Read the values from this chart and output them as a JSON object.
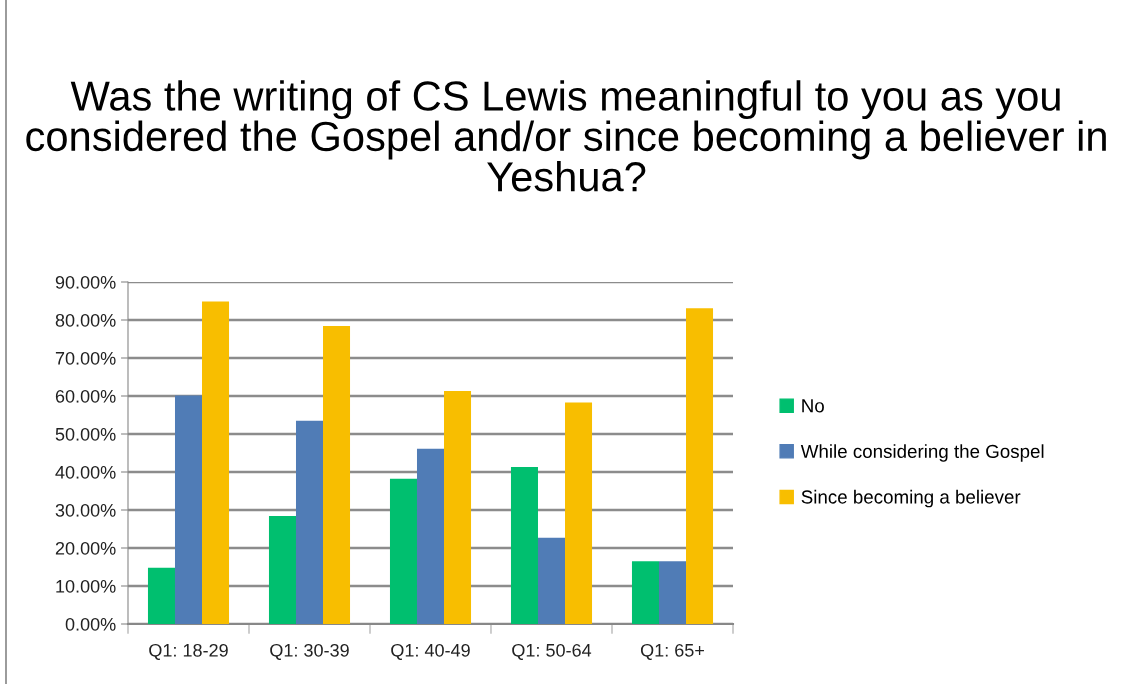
{
  "chart_data": {
    "type": "bar",
    "title": "Was the writing of CS Lewis meaningful to you as you considered the Gospel and/or since becoming a believer in Yeshua?",
    "categories": [
      "Q1: 18-29",
      "Q1: 30-39",
      "Q1: 40-49",
      "Q1: 50-64",
      "Q1: 65+"
    ],
    "series": [
      {
        "name": "No",
        "color": "#00bf6f",
        "values": [
          14.8,
          28.4,
          38.2,
          41.3,
          16.5
        ]
      },
      {
        "name": "While considering the Gospel",
        "color": "#507cb6",
        "values": [
          60.1,
          53.5,
          46.1,
          22.7,
          16.5
        ]
      },
      {
        "name": "Since becoming a believer",
        "color": "#f8be00",
        "values": [
          84.9,
          78.4,
          61.3,
          58.3,
          83.1
        ]
      }
    ],
    "ylim": [
      0,
      90
    ],
    "yticks": [
      {
        "value": 0,
        "label": "0.00%"
      },
      {
        "value": 10,
        "label": "10.00%"
      },
      {
        "value": 20,
        "label": "20.00%"
      },
      {
        "value": 30,
        "label": "30.00%"
      },
      {
        "value": 40,
        "label": "40.00%"
      },
      {
        "value": 50,
        "label": "50.00%"
      },
      {
        "value": 60,
        "label": "60.00%"
      },
      {
        "value": 70,
        "label": "70.00%"
      },
      {
        "value": 80,
        "label": "80.00%"
      },
      {
        "value": 90,
        "label": "90.00%"
      }
    ],
    "grid": "y",
    "legend": "right"
  }
}
